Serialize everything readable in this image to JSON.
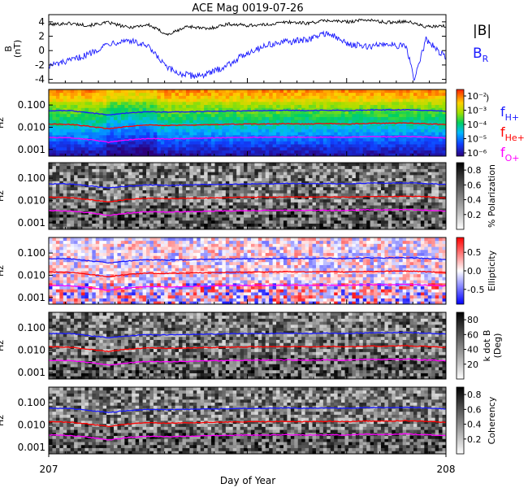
{
  "title": "ACE Mag 0019-07-26",
  "xlabel": "Day of Year",
  "colors": {
    "total_field": "#000000",
    "radial_field": "#1a1aff",
    "f_h": "#1a1aff",
    "f_he": "#ff0000",
    "f_o": "#ff00ff"
  },
  "chart_data": [
    {
      "type": "line",
      "panel": "magnetic-field",
      "ylabel_main": "B",
      "ylabel_unit": "(nT)",
      "xlim": [
        207,
        208
      ],
      "ylim": [
        -4.5,
        5
      ],
      "yticks": [
        4,
        2,
        0,
        -2,
        -4
      ],
      "xticks": [
        "207",
        "208"
      ],
      "series": [
        {
          "name": "|B|",
          "x": [
            207.0,
            207.05,
            207.1,
            207.15,
            207.2,
            207.25,
            207.3,
            207.35,
            207.4,
            207.45,
            207.5,
            207.55,
            207.6,
            207.65,
            207.7,
            207.75,
            207.8,
            207.85,
            207.9,
            207.95,
            208.0
          ],
          "values": [
            3.6,
            3.8,
            3.5,
            3.9,
            3.2,
            3.6,
            2.2,
            3.4,
            3.0,
            3.7,
            3.5,
            3.6,
            4.0,
            3.8,
            4.2,
            4.0,
            4.3,
            3.9,
            4.1,
            3.3,
            3.4
          ]
        },
        {
          "name": "B_R",
          "x": [
            207.0,
            207.05,
            207.1,
            207.15,
            207.2,
            207.25,
            207.3,
            207.33,
            207.36,
            207.4,
            207.45,
            207.5,
            207.55,
            207.6,
            207.65,
            207.7,
            207.75,
            207.8,
            207.85,
            207.9,
            207.92,
            207.95,
            208.0
          ],
          "values": [
            -2.1,
            -1.5,
            -0.5,
            1.0,
            1.5,
            0.5,
            -2.5,
            -3.2,
            -3.5,
            -3.3,
            -2.0,
            -0.3,
            0.8,
            1.2,
            1.5,
            2.5,
            1.0,
            0.5,
            1.0,
            0.5,
            -4.0,
            1.5,
            -1.0
          ]
        }
      ]
    },
    {
      "type": "heatmap",
      "panel": "power-spectrum",
      "ylabel": "Hz",
      "yscale": "log",
      "ylim": [
        0.0005,
        0.5
      ],
      "yticks": [
        "0.100",
        "0.010",
        "0.001"
      ],
      "colorbar": {
        "scale": "log",
        "ticks": [
          "10⁻²",
          "10⁻³",
          "10⁻⁴",
          "10⁻⁵",
          "10⁻⁶"
        ],
        "label_fragment": ")"
      }
    },
    {
      "type": "heatmap",
      "panel": "polarization",
      "ylabel": "Hz",
      "yscale": "log",
      "ylim": [
        0.0005,
        0.5
      ],
      "yticks": [
        "0.100",
        "0.010",
        "0.001"
      ],
      "colorbar": {
        "label": "% Polarization",
        "ticks": [
          "0.8",
          "0.6",
          "0.4",
          "0.2"
        ],
        "range": [
          0,
          0.9
        ]
      }
    },
    {
      "type": "heatmap",
      "panel": "ellipticity",
      "ylabel": "Hz",
      "yscale": "log",
      "ylim": [
        0.0005,
        0.5
      ],
      "yticks": [
        "0.100",
        "0.010",
        "0.001"
      ],
      "colorbar": {
        "label": "Ellipticity",
        "ticks": [
          "0.5",
          "0.0",
          "-0.5"
        ],
        "range": [
          -0.9,
          0.9
        ]
      }
    },
    {
      "type": "heatmap",
      "panel": "k-dot-b",
      "ylabel": "Hz",
      "yscale": "log",
      "ylim": [
        0.0005,
        0.5
      ],
      "yticks": [
        "0.100",
        "0.010",
        "0.001"
      ],
      "colorbar": {
        "label": "k dot B",
        "unit": "(Deg)",
        "ticks": [
          "80",
          "60",
          "40",
          "20"
        ],
        "range": [
          0,
          90
        ]
      }
    },
    {
      "type": "heatmap",
      "panel": "coherency",
      "ylabel": "Hz",
      "yscale": "log",
      "ylim": [
        0.0005,
        0.5
      ],
      "yticks": [
        "0.100",
        "0.010",
        "0.001"
      ],
      "colorbar": {
        "label": "Coherency",
        "ticks": [
          "0.8",
          "0.6",
          "0.4",
          "0.2"
        ],
        "range": [
          0,
          0.9
        ]
      }
    }
  ],
  "gyrofrequency_lines": {
    "x": [
      207.0,
      207.05,
      207.1,
      207.15,
      207.2,
      207.25,
      207.3,
      207.35,
      207.4,
      207.45,
      207.5,
      207.55,
      207.6,
      207.65,
      207.7,
      207.75,
      207.8,
      207.85,
      207.9,
      207.95,
      208.0
    ],
    "f_H": [
      0.055,
      0.056,
      0.045,
      0.036,
      0.044,
      0.05,
      0.048,
      0.05,
      0.052,
      0.054,
      0.055,
      0.056,
      0.058,
      0.056,
      0.058,
      0.056,
      0.06,
      0.06,
      0.062,
      0.058,
      0.052
    ],
    "f_He": [
      0.014,
      0.0135,
      0.011,
      0.0085,
      0.011,
      0.0125,
      0.012,
      0.0125,
      0.013,
      0.0135,
      0.014,
      0.014,
      0.0145,
      0.014,
      0.0145,
      0.014,
      0.015,
      0.015,
      0.0155,
      0.0145,
      0.013
    ],
    "f_O": [
      0.0035,
      0.0034,
      0.0028,
      0.0021,
      0.0027,
      0.0031,
      0.003,
      0.0031,
      0.0033,
      0.0034,
      0.0035,
      0.0035,
      0.0036,
      0.0035,
      0.0036,
      0.0035,
      0.0038,
      0.0037,
      0.0039,
      0.0036,
      0.0033
    ]
  },
  "legend": {
    "magnitude": "|B|",
    "radial": {
      "base": "B",
      "sub": "R"
    },
    "h": {
      "base": "f",
      "sub": "H+"
    },
    "he": {
      "base": "f",
      "sub": "He+"
    },
    "o": {
      "base": "f",
      "sub": "O+"
    }
  }
}
